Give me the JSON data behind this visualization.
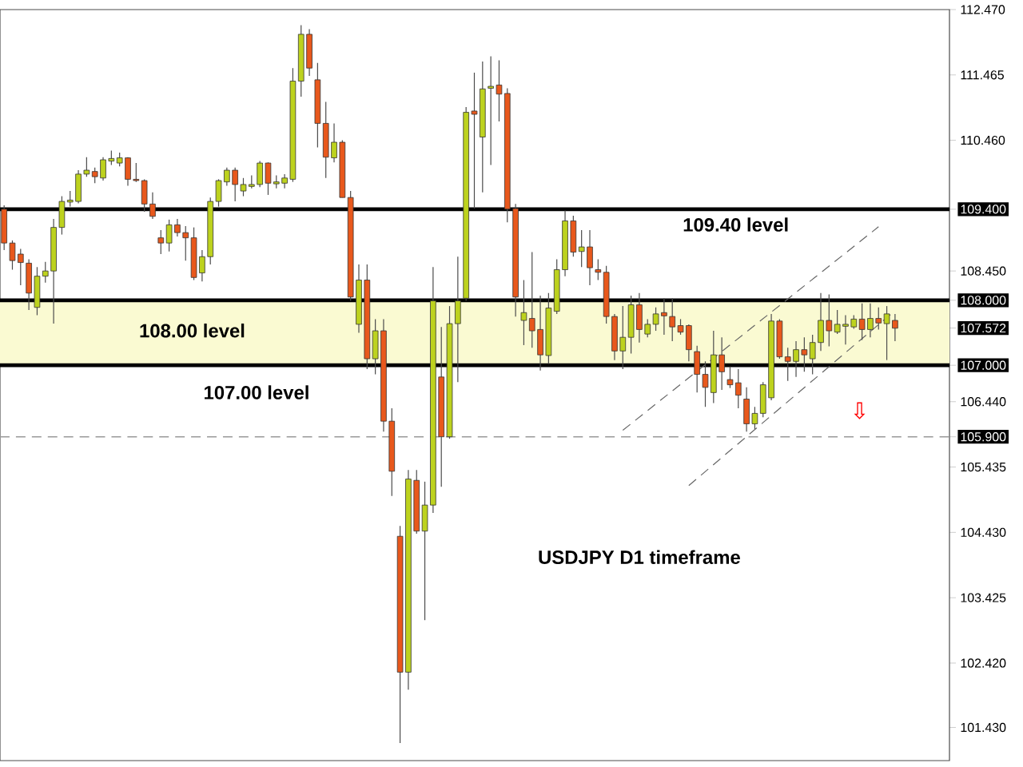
{
  "chart_data": {
    "type": "candlestick",
    "categories": [
      null,
      null,
      null,
      null,
      null,
      null,
      null,
      null,
      null,
      null,
      null,
      null,
      null,
      null,
      null,
      null,
      null,
      null,
      null,
      null,
      null,
      null,
      null,
      null,
      null,
      null,
      null,
      null,
      null,
      null,
      null,
      null,
      null,
      null,
      null,
      null,
      null,
      null,
      null,
      null,
      null,
      null,
      null,
      null,
      null,
      null,
      null,
      null,
      null,
      null,
      null,
      null,
      null,
      null,
      null,
      null,
      null,
      null,
      null,
      null,
      null,
      null,
      null,
      null,
      null,
      null,
      null,
      null,
      null,
      null,
      null,
      null,
      null,
      null,
      null,
      null,
      null,
      null,
      null,
      null,
      null,
      null,
      null,
      null,
      null,
      null,
      null,
      null,
      null,
      null,
      null,
      null,
      null,
      null,
      null,
      null,
      null,
      null,
      null,
      null,
      null,
      null,
      null,
      null,
      null,
      null,
      null,
      null,
      null
    ],
    "ohlc": [
      [
        109.4,
        109.46,
        108.77,
        108.88
      ],
      [
        108.88,
        108.92,
        108.47,
        108.61
      ],
      [
        108.71,
        108.79,
        108.23,
        108.58
      ],
      [
        108.57,
        108.63,
        107.85,
        108.11
      ],
      [
        107.89,
        108.51,
        107.77,
        108.37
      ],
      [
        108.37,
        108.59,
        108.27,
        108.45
      ],
      [
        108.45,
        109.25,
        107.64,
        109.12
      ],
      [
        109.12,
        109.6,
        109.01,
        109.52
      ],
      [
        109.51,
        109.68,
        109.44,
        109.54
      ],
      [
        109.52,
        110.0,
        109.49,
        109.94
      ],
      [
        109.94,
        110.2,
        109.9,
        110.0
      ],
      [
        109.98,
        110.04,
        109.8,
        109.9
      ],
      [
        109.88,
        110.2,
        109.84,
        110.16
      ],
      [
        110.14,
        110.3,
        110.08,
        110.18
      ],
      [
        110.11,
        110.27,
        110.06,
        110.19
      ],
      [
        110.19,
        110.2,
        109.76,
        109.86
      ],
      [
        109.86,
        110.11,
        109.82,
        109.84
      ],
      [
        109.84,
        109.86,
        109.36,
        109.48
      ],
      [
        109.48,
        109.66,
        109.25,
        109.29
      ],
      [
        108.96,
        109.08,
        108.71,
        108.88
      ],
      [
        108.88,
        109.24,
        108.75,
        109.16
      ],
      [
        109.16,
        109.25,
        108.98,
        109.04
      ],
      [
        109.04,
        109.14,
        108.61,
        108.96
      ],
      [
        108.96,
        109.12,
        108.31,
        108.35
      ],
      [
        108.42,
        108.77,
        108.29,
        108.67
      ],
      [
        108.67,
        109.58,
        108.55,
        109.52
      ],
      [
        109.52,
        109.86,
        109.44,
        109.84
      ],
      [
        109.82,
        110.04,
        109.76,
        110.0
      ],
      [
        110.0,
        110.04,
        109.52,
        109.78
      ],
      [
        109.68,
        109.88,
        109.6,
        109.78
      ],
      [
        109.75,
        109.92,
        109.72,
        109.78
      ],
      [
        109.78,
        110.14,
        109.74,
        110.11
      ],
      [
        110.11,
        110.12,
        109.62,
        109.8
      ],
      [
        109.79,
        109.92,
        109.72,
        109.82
      ],
      [
        109.8,
        109.94,
        109.72,
        109.88
      ],
      [
        109.86,
        111.57,
        109.82,
        111.37
      ],
      [
        111.37,
        112.23,
        111.13,
        112.09
      ],
      [
        112.09,
        112.17,
        111.45,
        111.57
      ],
      [
        111.39,
        111.65,
        110.35,
        110.72
      ],
      [
        110.72,
        111.05,
        109.88,
        110.2
      ],
      [
        110.19,
        110.72,
        110.12,
        110.43
      ],
      [
        110.43,
        110.46,
        109.58,
        109.58
      ],
      [
        109.58,
        109.68,
        107.99,
        108.05
      ],
      [
        107.63,
        108.55,
        107.5,
        108.31
      ],
      [
        108.31,
        108.55,
        106.94,
        107.1
      ],
      [
        107.1,
        107.71,
        106.86,
        107.53
      ],
      [
        107.53,
        107.71,
        105.98,
        106.14
      ],
      [
        106.14,
        106.34,
        104.99,
        105.37
      ],
      [
        104.37,
        104.53,
        101.19,
        102.28
      ],
      [
        102.28,
        105.39,
        102.01,
        105.25
      ],
      [
        105.23,
        105.39,
        104.41,
        104.45
      ],
      [
        104.45,
        105.21,
        103.08,
        104.85
      ],
      [
        104.85,
        108.51,
        104.73,
        107.99
      ],
      [
        106.82,
        107.59,
        105.13,
        105.9
      ],
      [
        105.9,
        107.91,
        105.87,
        107.64
      ],
      [
        107.64,
        108.67,
        106.74,
        107.99
      ],
      [
        108.03,
        110.97,
        107.99,
        110.89
      ],
      [
        110.91,
        111.5,
        109.41,
        110.86
      ],
      [
        110.51,
        111.67,
        109.66,
        111.25
      ],
      [
        111.26,
        111.75,
        110.08,
        111.29
      ],
      [
        111.31,
        111.69,
        110.75,
        111.17
      ],
      [
        111.18,
        111.26,
        109.2,
        109.4
      ],
      [
        109.41,
        109.48,
        107.75,
        108.05
      ],
      [
        107.69,
        108.31,
        107.31,
        107.81
      ],
      [
        107.72,
        108.74,
        107.27,
        107.53
      ],
      [
        107.55,
        108.07,
        106.92,
        107.16
      ],
      [
        107.15,
        108.11,
        107.02,
        107.88
      ],
      [
        107.83,
        108.63,
        107.79,
        108.47
      ],
      [
        108.47,
        109.38,
        108.37,
        109.22
      ],
      [
        109.22,
        109.3,
        108.67,
        108.74
      ],
      [
        108.75,
        109.08,
        108.51,
        108.82
      ],
      [
        108.82,
        109.08,
        108.23,
        108.5
      ],
      [
        108.47,
        108.63,
        108.31,
        108.43
      ],
      [
        108.43,
        108.53,
        107.64,
        107.75
      ],
      [
        107.75,
        107.79,
        107.08,
        107.22
      ],
      [
        107.22,
        107.91,
        106.94,
        107.43
      ],
      [
        107.43,
        108.07,
        107.18,
        107.93
      ],
      [
        107.93,
        108.11,
        107.35,
        107.55
      ],
      [
        107.48,
        107.71,
        107.43,
        107.63
      ],
      [
        107.63,
        107.89,
        107.53,
        107.79
      ],
      [
        107.81,
        108.03,
        107.47,
        107.76
      ],
      [
        107.75,
        108.03,
        107.37,
        107.59
      ],
      [
        107.61,
        107.71,
        107.47,
        107.51
      ],
      [
        107.61,
        107.63,
        107.06,
        107.24
      ],
      [
        107.21,
        107.3,
        106.58,
        106.86
      ],
      [
        106.86,
        107.06,
        106.36,
        106.66
      ],
      [
        106.58,
        107.53,
        106.42,
        107.16
      ],
      [
        107.16,
        107.43,
        106.62,
        106.9
      ],
      [
        106.78,
        106.98,
        106.65,
        106.7
      ],
      [
        106.73,
        106.94,
        106.34,
        106.54
      ],
      [
        106.48,
        106.66,
        105.98,
        106.1
      ],
      [
        106.1,
        106.36,
        106.02,
        106.26
      ],
      [
        106.26,
        106.74,
        106.2,
        106.7
      ],
      [
        106.5,
        107.79,
        106.46,
        107.68
      ],
      [
        107.68,
        107.71,
        107.1,
        107.13
      ],
      [
        107.13,
        107.27,
        106.76,
        107.06
      ],
      [
        107.06,
        107.37,
        106.82,
        107.24
      ],
      [
        107.24,
        107.43,
        106.9,
        107.16
      ],
      [
        107.1,
        107.47,
        106.86,
        107.35
      ],
      [
        107.35,
        108.11,
        107.22,
        107.69
      ],
      [
        107.69,
        108.09,
        107.29,
        107.53
      ],
      [
        107.51,
        107.85,
        107.48,
        107.63
      ],
      [
        107.6,
        107.77,
        107.32,
        107.63
      ],
      [
        107.59,
        107.77,
        107.56,
        107.71
      ],
      [
        107.71,
        107.95,
        107.39,
        107.55
      ],
      [
        107.55,
        107.95,
        107.43,
        107.72
      ],
      [
        107.72,
        107.89,
        107.55,
        107.65
      ],
      [
        107.64,
        107.91,
        107.08,
        107.79
      ],
      [
        107.69,
        107.79,
        107.37,
        107.57
      ]
    ],
    "colors": [
      "#e8581c",
      "#e8581c",
      "#e8581c",
      "#e8581c",
      "#bdd21e",
      "#bdd21e",
      "#bdd21e",
      "#bdd21e",
      "#bdd21e",
      "#bdd21e",
      "#bdd21e",
      "#e8581c",
      "#bdd21e",
      "#bdd21e",
      "#bdd21e",
      "#e8581c",
      "#e8581c",
      "#e8581c",
      "#e8581c",
      "#e8581c",
      "#bdd21e",
      "#e8581c",
      "#e8581c",
      "#e8581c",
      "#bdd21e",
      "#bdd21e",
      "#bdd21e",
      "#bdd21e",
      "#e8581c",
      "#bdd21e",
      "#bdd21e",
      "#bdd21e",
      "#e8581c",
      "#bdd21e",
      "#bdd21e",
      "#bdd21e",
      "#bdd21e",
      "#e8581c",
      "#e8581c",
      "#e8581c",
      "#bdd21e",
      "#e8581c",
      "#e8581c",
      "#bdd21e",
      "#e8581c",
      "#bdd21e",
      "#e8581c",
      "#e8581c",
      "#e8581c",
      "#bdd21e",
      "#e8581c",
      "#bdd21e",
      "#bdd21e",
      "#e8581c",
      "#bdd21e",
      "#bdd21e",
      "#bdd21e",
      "#e8581c",
      "#bdd21e",
      "#bdd21e",
      "#e8581c",
      "#e8581c",
      "#e8581c",
      "#bdd21e",
      "#e8581c",
      "#e8581c",
      "#bdd21e",
      "#bdd21e",
      "#bdd21e",
      "#e8581c",
      "#bdd21e",
      "#e8581c",
      "#e8581c",
      "#e8581c",
      "#e8581c",
      "#bdd21e",
      "#bdd21e",
      "#e8581c",
      "#bdd21e",
      "#bdd21e",
      "#e8581c",
      "#e8581c",
      "#e8581c",
      "#e8581c",
      "#e8581c",
      "#e8581c",
      "#bdd21e",
      "#e8581c",
      "#e8581c",
      "#e8581c",
      "#e8581c",
      "#bdd21e",
      "#bdd21e",
      "#bdd21e",
      "#e8581c",
      "#e8581c",
      "#bdd21e",
      "#e8581c",
      "#bdd21e",
      "#bdd21e",
      "#e8581c",
      "#bdd21e",
      "#bdd21e",
      "#bdd21e",
      "#e8581c",
      "#bdd21e",
      "#e8581c",
      "#bdd21e",
      "#e8581c"
    ],
    "series": [
      {
        "type": "line",
        "color": "#666666",
        "line_style": "dashed",
        "values": [
          null,
          null,
          null,
          null,
          null,
          null,
          null,
          null,
          null,
          null,
          null,
          null,
          null,
          null,
          null,
          null,
          null,
          null,
          null,
          null,
          null,
          null,
          null,
          null,
          null,
          null,
          null,
          null,
          null,
          null,
          null,
          null,
          null,
          null,
          null,
          null,
          null,
          null,
          null,
          null,
          null,
          null,
          null,
          null,
          null,
          null,
          null,
          null,
          null,
          null,
          null,
          null,
          null,
          null,
          null,
          null,
          null,
          null,
          null,
          null,
          null,
          null,
          null,
          null,
          null,
          null,
          null,
          null,
          null,
          null,
          null,
          null,
          null,
          null,
          null,
          106.0,
          null,
          null,
          null,
          null,
          null,
          null,
          null,
          null,
          null,
          null,
          null,
          null,
          null,
          null,
          null,
          null,
          null,
          null,
          null,
          null,
          null,
          null,
          null,
          null,
          null,
          null,
          null,
          null,
          null,
          null,
          109.13,
          null,
          null
        ]
      },
      {
        "type": "line",
        "color": "#666666",
        "line_style": "dashed",
        "values": [
          null,
          null,
          null,
          null,
          null,
          null,
          null,
          null,
          null,
          null,
          null,
          null,
          null,
          null,
          null,
          null,
          null,
          null,
          null,
          null,
          null,
          null,
          null,
          null,
          null,
          null,
          null,
          null,
          null,
          null,
          null,
          null,
          null,
          null,
          null,
          null,
          null,
          null,
          null,
          null,
          null,
          null,
          null,
          null,
          null,
          null,
          null,
          null,
          null,
          null,
          null,
          null,
          null,
          null,
          null,
          null,
          null,
          null,
          null,
          null,
          null,
          null,
          null,
          null,
          null,
          null,
          null,
          null,
          null,
          null,
          null,
          null,
          null,
          null,
          null,
          null,
          null,
          null,
          null,
          null,
          null,
          null,
          null,
          105.15,
          null,
          null,
          null,
          null,
          null,
          null,
          null,
          null,
          null,
          null,
          null,
          null,
          null,
          null,
          null,
          null,
          null,
          null,
          null,
          null,
          null,
          null,
          null,
          null,
          107.84
        ]
      }
    ],
    "ylim": [
      100.92,
      112.47
    ],
    "yticks": [
      {
        "value": 112.47,
        "label": "112.470"
      },
      {
        "value": 111.465,
        "label": "111.465"
      },
      {
        "value": 110.46,
        "label": "110.460"
      },
      {
        "value": 109.4,
        "label": "109.400"
      },
      {
        "value": 108.45,
        "label": "108.450"
      },
      {
        "value": 108.0,
        "label": "108.000"
      },
      {
        "value": 107.572,
        "label": "107.572"
      },
      {
        "value": 107.0,
        "label": "107.000"
      },
      {
        "value": 106.44,
        "label": "106.440"
      },
      {
        "value": 105.9,
        "label": "105.900"
      },
      {
        "value": 105.435,
        "label": "105.435"
      },
      {
        "value": 104.43,
        "label": "104.430"
      },
      {
        "value": 103.425,
        "label": "103.425"
      },
      {
        "value": 102.42,
        "label": "102.420"
      },
      {
        "value": 101.43,
        "label": "101.430"
      }
    ],
    "tick_labels": "y",
    "ref_lines": [
      {
        "axis": "y",
        "value": 109.4,
        "label": "109.40 level",
        "color": "#000000"
      },
      {
        "axis": "y",
        "value": 108.0,
        "label": "108.00 level",
        "color": "#000000"
      },
      {
        "axis": "y",
        "value": 107.0,
        "label": "107.00 level",
        "color": "#000000"
      },
      {
        "axis": "y",
        "value": 105.9,
        "color": "#999999",
        "line_style": "dashed"
      }
    ],
    "bands": [
      {
        "axis": "y",
        "from": 107.0,
        "to": 108.0,
        "color": "#fafad2"
      }
    ],
    "annotations": [
      "USDJPY D1 timeframe",
      "⇩"
    ]
  }
}
